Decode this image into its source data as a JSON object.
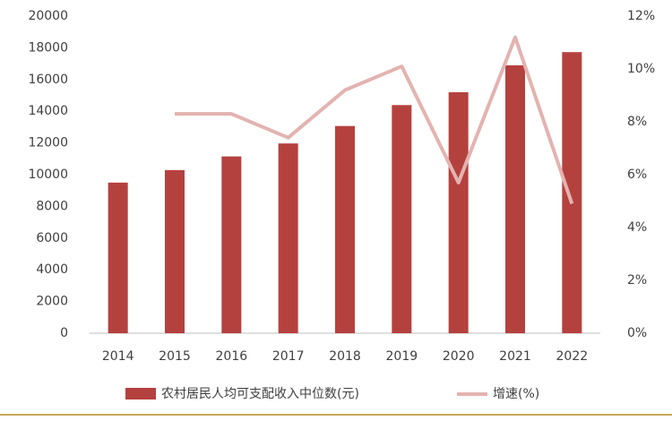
{
  "chart_data": {
    "type": "bar",
    "categories": [
      "2014",
      "2015",
      "2016",
      "2017",
      "2018",
      "2019",
      "2020",
      "2021",
      "2022"
    ],
    "series": [
      {
        "name": "农村居民人均可支配收入中位数(元)",
        "type": "bar",
        "color": "#b5413f",
        "values": [
          9500,
          10290,
          11150,
          11970,
          13070,
          14390,
          15200,
          16900,
          17730
        ]
      },
      {
        "name": "增速(%)",
        "type": "line",
        "axis": "y2",
        "color": "#e3b3b0",
        "values": [
          null,
          8.3,
          8.3,
          7.4,
          9.2,
          10.1,
          5.7,
          11.2,
          4.9
        ]
      }
    ],
    "ylim": [
      0,
      20000
    ],
    "yticks": [
      0,
      2000,
      4000,
      6000,
      8000,
      10000,
      12000,
      14000,
      16000,
      18000,
      20000
    ],
    "y2lim": [
      0,
      12
    ],
    "y2ticks": [
      {
        "value": 0,
        "label": "0%"
      },
      {
        "value": 2,
        "label": "2%"
      },
      {
        "value": 4,
        "label": "4%"
      },
      {
        "value": 6,
        "label": "6%"
      },
      {
        "value": 8,
        "label": "8%"
      },
      {
        "value": 10,
        "label": "10%"
      },
      {
        "value": 12,
        "label": "12%"
      }
    ],
    "grid": false
  }
}
